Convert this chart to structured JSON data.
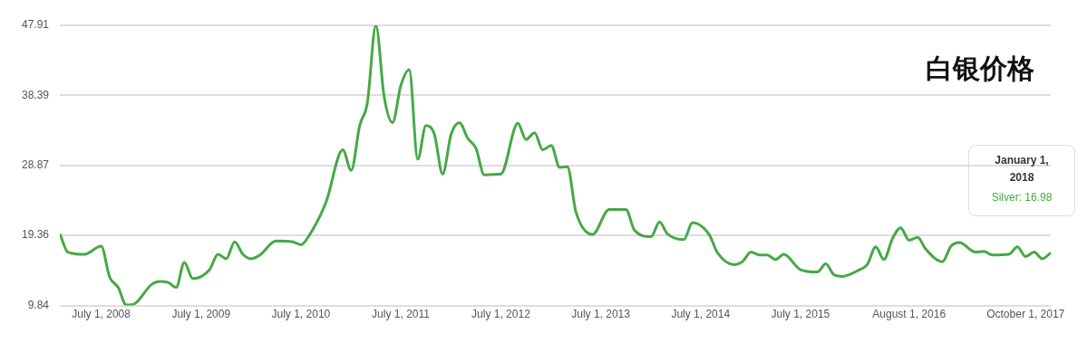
{
  "chart_data": {
    "type": "line",
    "title": "白银价格",
    "x": [
      "2008-02",
      "2008-03",
      "2008-05",
      "2008-07",
      "2008-08",
      "2008-09",
      "2008-10",
      "2008-11",
      "2009-01",
      "2009-02",
      "2009-03",
      "2009-04",
      "2009-05",
      "2009-06",
      "2009-08",
      "2009-09",
      "2009-10",
      "2009-11",
      "2009-12",
      "2010-01",
      "2010-02",
      "2010-04",
      "2010-06",
      "2010-07",
      "2010-08",
      "2010-10",
      "2010-12",
      "2011-01",
      "2011-02",
      "2011-03",
      "2011-04",
      "2011-05",
      "2011-06",
      "2011-07",
      "2011-08",
      "2011-09",
      "2011-10",
      "2011-11",
      "2011-12",
      "2012-01",
      "2012-02",
      "2012-03",
      "2012-04",
      "2012-05",
      "2012-07",
      "2012-09",
      "2012-10",
      "2012-11",
      "2012-12",
      "2013-01",
      "2013-02",
      "2013-03",
      "2013-04",
      "2013-06",
      "2013-08",
      "2013-10",
      "2013-11",
      "2014-01",
      "2014-02",
      "2014-03",
      "2014-05",
      "2014-06",
      "2014-08",
      "2014-09",
      "2014-11",
      "2014-12",
      "2015-01",
      "2015-02",
      "2015-03",
      "2015-04",
      "2015-05",
      "2015-07",
      "2015-09",
      "2015-10",
      "2015-11",
      "2015-12",
      "2016-02",
      "2016-03",
      "2016-04",
      "2016-05",
      "2016-06",
      "2016-07",
      "2016-08",
      "2016-09",
      "2016-10",
      "2016-12",
      "2017-01",
      "2017-02",
      "2017-04",
      "2017-05",
      "2017-06",
      "2017-08",
      "2017-09",
      "2017-10",
      "2017-11",
      "2017-12",
      "2018-01"
    ],
    "series": [
      {
        "color": "#46a846",
        "values": [
          19.6,
          17.1,
          16.8,
          17.9,
          13.7,
          12.3,
          9.9,
          10.1,
          12.7,
          13.1,
          13.0,
          12.3,
          15.7,
          13.5,
          14.7,
          16.8,
          16.2,
          18.5,
          16.8,
          16.2,
          16.7,
          18.6,
          18.5,
          18.1,
          19.4,
          23.9,
          31.0,
          28.2,
          34.3,
          37.4,
          47.9,
          38.3,
          34.7,
          39.7,
          41.9,
          29.7,
          34.3,
          33.1,
          27.7,
          33.1,
          34.7,
          32.6,
          31.2,
          27.6,
          27.7,
          34.6,
          32.4,
          33.3,
          31.0,
          31.6,
          28.6,
          28.7,
          22.6,
          19.5,
          22.9,
          22.9,
          20.1,
          19.2,
          21.2,
          19.6,
          18.8,
          21.1,
          19.5,
          17.0,
          15.4,
          15.8,
          17.1,
          16.7,
          16.7,
          16.1,
          16.8,
          14.7,
          14.4,
          15.5,
          14.0,
          13.8,
          14.7,
          15.4,
          17.8,
          16.1,
          18.9,
          20.4,
          18.7,
          19.1,
          17.5,
          15.8,
          17.9,
          18.4,
          17.1,
          17.2,
          16.7,
          16.8,
          17.8,
          16.5,
          17.1,
          16.2,
          17.0
        ]
      }
    ],
    "annotations": [
      "January 1, 2018",
      "Silver: 16.98"
    ],
    "xlim": [
      "2008-02",
      "2018-01"
    ],
    "xticks": [
      {
        "value": "2008-07",
        "label": "July 1, 2008"
      },
      {
        "value": "2009-07",
        "label": "July 1, 2009"
      },
      {
        "value": "2010-07",
        "label": "July 1, 2010"
      },
      {
        "value": "2011-07",
        "label": "July 1, 2011"
      },
      {
        "value": "2012-07",
        "label": "July 1, 2012"
      },
      {
        "value": "2013-07",
        "label": "July 1, 2013"
      },
      {
        "value": "2014-07",
        "label": "July 1, 2014"
      },
      {
        "value": "2015-07",
        "label": "July 1, 2015"
      },
      {
        "value": "2016-08",
        "label": "August 1, 2016"
      },
      {
        "value": "2017-10",
        "label": "October 1, 2017"
      }
    ],
    "ylim": [
      9.84,
      47.91
    ],
    "yticks": [
      9.84,
      19.36,
      28.87,
      38.39,
      47.91
    ],
    "grid": "y",
    "legend": false
  }
}
